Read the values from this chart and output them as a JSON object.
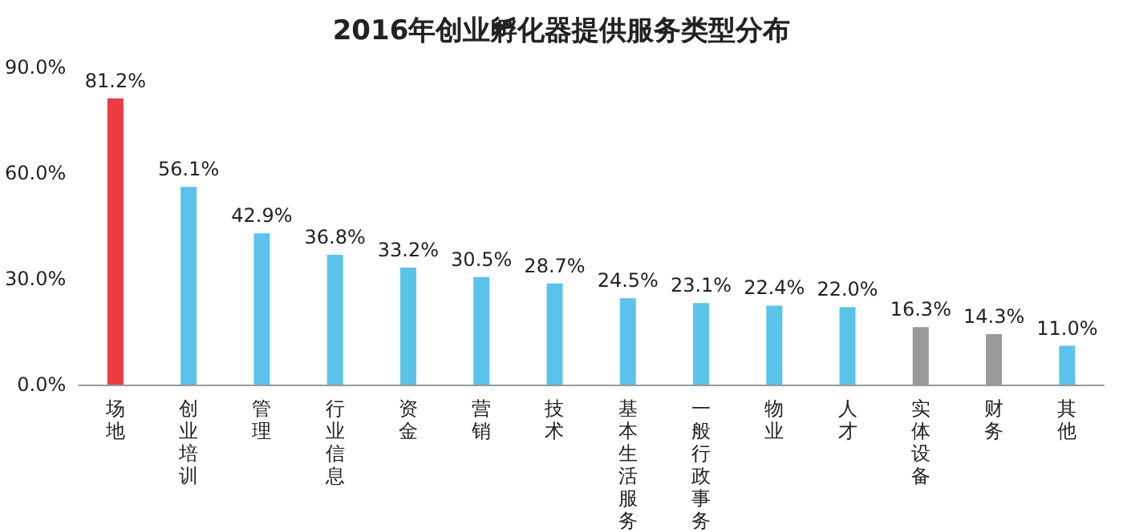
{
  "chart_data": {
    "type": "bar",
    "title": "2016年创业孵化器提供服务类型分布",
    "categories": [
      "场地",
      "创业培训",
      "管理",
      "行业信息",
      "资金",
      "营销",
      "技术",
      "基本生活服务",
      "一般行政事务",
      "物业",
      "人才",
      "实体设备",
      "财务",
      "其他"
    ],
    "values": [
      81.2,
      56.1,
      42.9,
      36.8,
      33.2,
      30.5,
      28.7,
      24.5,
      23.1,
      22.4,
      22.0,
      16.3,
      14.3,
      11.0
    ],
    "value_labels": [
      "81.2%",
      "56.1%",
      "42.9%",
      "36.8%",
      "33.2%",
      "30.5%",
      "28.7%",
      "24.5%",
      "23.1%",
      "22.4%",
      "22.0%",
      "16.3%",
      "14.3%",
      "11.0%"
    ],
    "colors": [
      "#ee3b43",
      "#5bc3ea",
      "#5bc3ea",
      "#5bc3ea",
      "#5bc3ea",
      "#5bc3ea",
      "#5bc3ea",
      "#5bc3ea",
      "#5bc3ea",
      "#5bc3ea",
      "#5bc3ea",
      "#9a9a9a",
      "#9a9a9a",
      "#5bc3ea"
    ],
    "ylim": [
      0,
      90
    ],
    "yticks": [
      {
        "value": 0,
        "label": "0.0%"
      },
      {
        "value": 30,
        "label": "30.0%"
      },
      {
        "value": 60,
        "label": "60.0%"
      },
      {
        "value": 90,
        "label": "90.0%"
      }
    ],
    "grid": false
  }
}
